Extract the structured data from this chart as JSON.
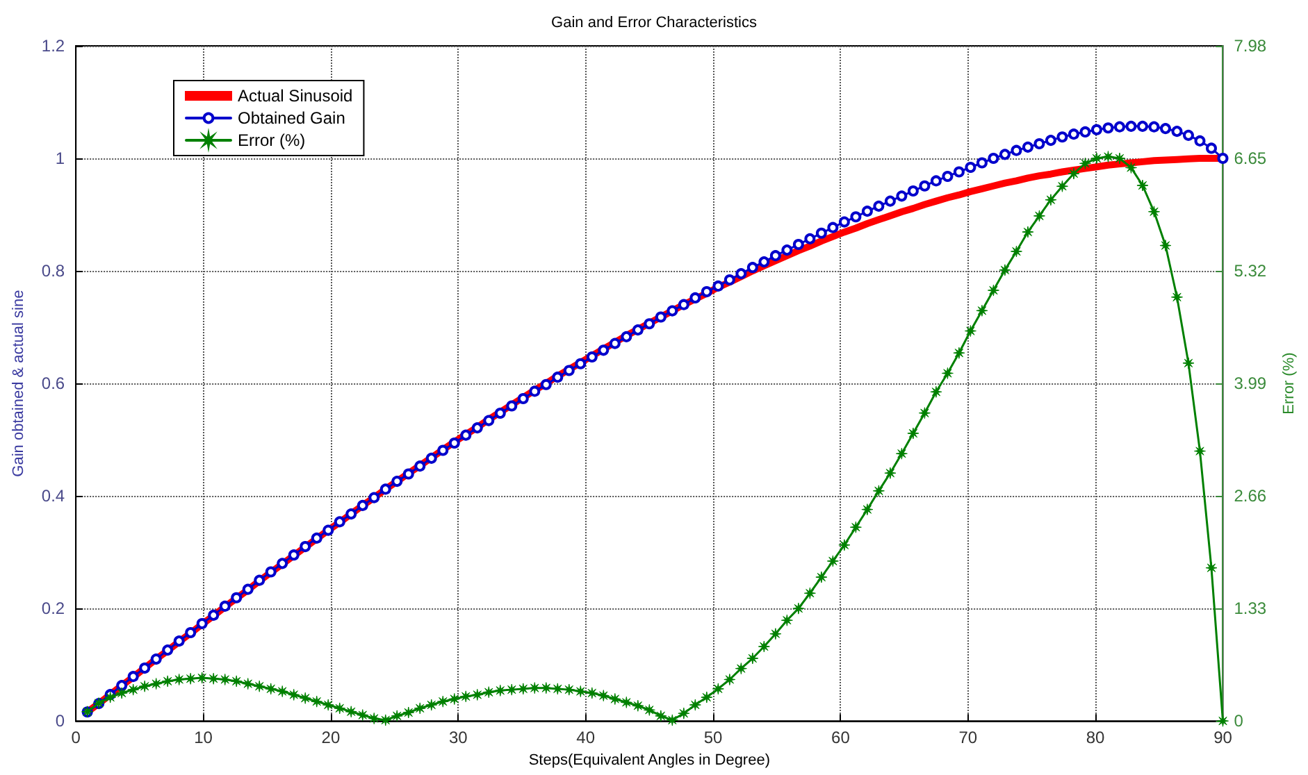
{
  "chart_data": {
    "type": "line",
    "title": "Gain and Error Characteristics",
    "xlabel": "Steps(Equivalent Angles in Degree)",
    "ylabel": "Gain obtained & actual sine",
    "y2label": "Error (%)",
    "x": [
      0.9,
      1.8,
      2.7,
      3.6,
      4.5,
      5.4,
      6.3,
      7.2,
      8.1,
      9,
      9.9,
      10.8,
      11.7,
      12.6,
      13.5,
      14.4,
      15.3,
      16.2,
      17.1,
      18,
      18.9,
      19.8,
      20.7,
      21.6,
      22.5,
      23.4,
      24.3,
      25.2,
      26.1,
      27,
      27.9,
      28.8,
      29.7,
      30.6,
      31.5,
      32.4,
      33.3,
      34.2,
      35.1,
      36,
      36.9,
      37.8,
      38.7,
      39.6,
      40.5,
      41.4,
      42.3,
      43.2,
      44.1,
      45,
      45.9,
      46.8,
      47.7,
      48.6,
      49.5,
      50.4,
      51.3,
      52.2,
      53.1,
      54,
      54.9,
      55.8,
      56.7,
      57.6,
      58.5,
      59.4,
      60.3,
      61.2,
      62.1,
      63,
      63.9,
      64.8,
      65.7,
      66.6,
      67.5,
      68.4,
      69.3,
      70.2,
      71.1,
      72,
      72.9,
      73.8,
      74.7,
      75.6,
      76.5,
      77.4,
      78.3,
      79.2,
      80.1,
      81,
      81.9,
      82.8,
      83.7,
      84.6,
      85.5,
      86.4,
      87.3,
      88.2,
      89.1,
      90
    ],
    "series": [
      {
        "name": "Actual Sinusoid",
        "color": "#ff0000",
        "marker": "none",
        "values": [
          0.016,
          0.031,
          0.047,
          0.063,
          0.078,
          0.094,
          0.11,
          0.125,
          0.141,
          0.156,
          0.172,
          0.187,
          0.203,
          0.218,
          0.233,
          0.249,
          0.264,
          0.279,
          0.294,
          0.309,
          0.324,
          0.339,
          0.353,
          0.368,
          0.383,
          0.397,
          0.412,
          0.426,
          0.44,
          0.454,
          0.468,
          0.482,
          0.496,
          0.509,
          0.522,
          0.536,
          0.549,
          0.562,
          0.575,
          0.588,
          0.6,
          0.613,
          0.625,
          0.637,
          0.649,
          0.661,
          0.673,
          0.685,
          0.696,
          0.707,
          0.718,
          0.729,
          0.74,
          0.75,
          0.76,
          0.771,
          0.78,
          0.79,
          0.8,
          0.809,
          0.818,
          0.827,
          0.836,
          0.844,
          0.853,
          0.861,
          0.869,
          0.876,
          0.884,
          0.891,
          0.898,
          0.905,
          0.911,
          0.918,
          0.924,
          0.93,
          0.935,
          0.941,
          0.946,
          0.951,
          0.956,
          0.96,
          0.965,
          0.969,
          0.972,
          0.976,
          0.979,
          0.982,
          0.985,
          0.988,
          0.99,
          0.992,
          0.994,
          0.996,
          0.997,
          0.998,
          0.999,
          1.0,
          1.0,
          1.0
        ]
      },
      {
        "name": "Obtained Gain",
        "color": "#0000cc",
        "marker": "circle",
        "values": [
          0.016,
          0.031,
          0.047,
          0.063,
          0.079,
          0.094,
          0.11,
          0.126,
          0.142,
          0.157,
          0.173,
          0.188,
          0.204,
          0.219,
          0.234,
          0.25,
          0.265,
          0.28,
          0.295,
          0.31,
          0.325,
          0.339,
          0.354,
          0.368,
          0.383,
          0.397,
          0.412,
          0.426,
          0.439,
          0.453,
          0.467,
          0.481,
          0.494,
          0.508,
          0.521,
          0.534,
          0.547,
          0.56,
          0.573,
          0.586,
          0.598,
          0.611,
          0.623,
          0.635,
          0.647,
          0.659,
          0.671,
          0.683,
          0.695,
          0.706,
          0.718,
          0.729,
          0.74,
          0.752,
          0.763,
          0.773,
          0.784,
          0.795,
          0.806,
          0.816,
          0.827,
          0.837,
          0.847,
          0.857,
          0.867,
          0.877,
          0.887,
          0.896,
          0.906,
          0.915,
          0.924,
          0.933,
          0.942,
          0.951,
          0.96,
          0.968,
          0.976,
          0.984,
          0.992,
          1.0,
          1.007,
          1.014,
          1.02,
          1.026,
          1.032,
          1.038,
          1.043,
          1.047,
          1.051,
          1.054,
          1.056,
          1.057,
          1.057,
          1.056,
          1.053,
          1.048,
          1.041,
          1.031,
          1.018,
          1.0
        ]
      },
      {
        "name": "Error (%)",
        "color": "#008000",
        "marker": "star",
        "axis": "y2",
        "values": [
          0.11,
          0.21,
          0.28,
          0.33,
          0.37,
          0.41,
          0.44,
          0.47,
          0.49,
          0.5,
          0.51,
          0.5,
          0.49,
          0.47,
          0.44,
          0.41,
          0.38,
          0.35,
          0.31,
          0.27,
          0.23,
          0.19,
          0.15,
          0.11,
          0.07,
          0.03,
          0.01,
          0.06,
          0.1,
          0.15,
          0.19,
          0.23,
          0.26,
          0.29,
          0.31,
          0.34,
          0.36,
          0.37,
          0.38,
          0.39,
          0.39,
          0.38,
          0.37,
          0.35,
          0.33,
          0.3,
          0.26,
          0.22,
          0.18,
          0.13,
          0.06,
          0.01,
          0.09,
          0.19,
          0.28,
          0.38,
          0.49,
          0.62,
          0.74,
          0.88,
          1.03,
          1.19,
          1.33,
          1.51,
          1.7,
          1.89,
          2.08,
          2.29,
          2.5,
          2.72,
          2.93,
          3.16,
          3.4,
          3.64,
          3.89,
          4.11,
          4.35,
          4.61,
          4.85,
          5.09,
          5.33,
          5.55,
          5.78,
          5.97,
          6.16,
          6.32,
          6.47,
          6.59,
          6.65,
          6.67,
          6.65,
          6.54,
          6.33,
          6.02,
          5.62,
          5.01,
          4.23,
          3.19,
          1.81,
          0
        ]
      }
    ],
    "xlim": [
      0,
      90
    ],
    "xticks": [
      0,
      10,
      20,
      30,
      40,
      50,
      60,
      70,
      80,
      90
    ],
    "ylim": [
      0,
      1.2
    ],
    "yticks": [
      0,
      0.2,
      0.4,
      0.6,
      0.8,
      1,
      1.2
    ],
    "y2lim": [
      0,
      7.98
    ],
    "y2ticks": [
      0,
      1.33,
      2.66,
      3.99,
      5.32,
      6.65,
      7.98
    ],
    "grid": true,
    "legend": "top left"
  }
}
